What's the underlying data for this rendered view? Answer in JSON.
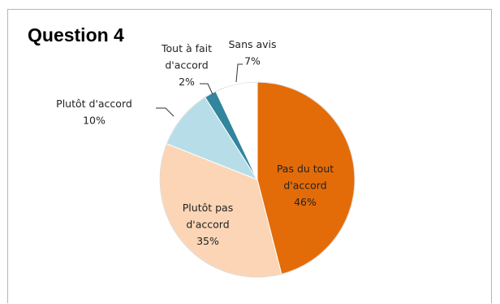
{
  "chart_data": {
    "type": "pie",
    "title": "Question 4",
    "slices": [
      {
        "name": "Pas du tout d'accord",
        "value": 46,
        "label_lines": [
          "Pas du tout",
          "d'accord",
          "46%"
        ],
        "color": "#e36c09"
      },
      {
        "name": "Plutôt pas d'accord",
        "value": 35,
        "label_lines": [
          "Plutôt pas",
          "d'accord",
          "35%"
        ],
        "color": "#fbd5b5"
      },
      {
        "name": "Plutôt d'accord",
        "value": 10,
        "label_lines": [
          "Plutôt d'accord",
          "10%"
        ],
        "color": "#b7dde8"
      },
      {
        "name": "Tout à fait d'accord",
        "value": 2,
        "label_lines": [
          "Tout à fait",
          "d'accord",
          "2%"
        ],
        "color": "#31859c"
      },
      {
        "name": "Sans avis",
        "value": 7,
        "label_lines": [
          "Sans avis",
          "7%"
        ],
        "color": "#ffffff"
      }
    ],
    "legend": "none",
    "start": "top, clockwise"
  }
}
